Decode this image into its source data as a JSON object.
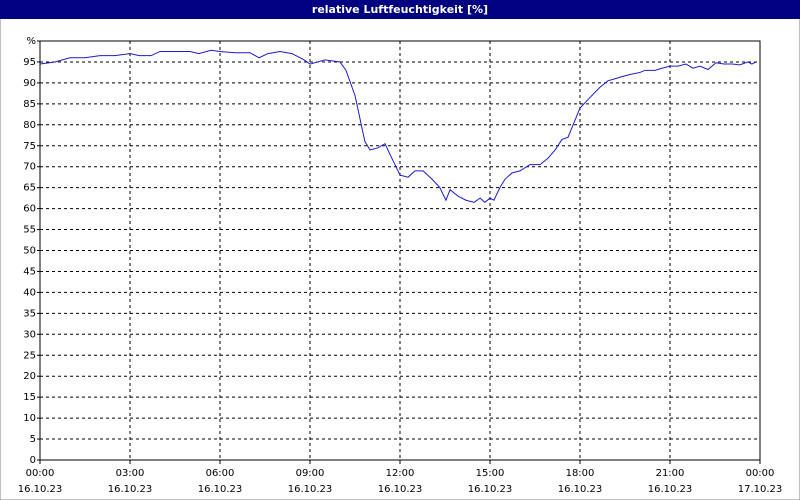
{
  "chart_data": {
    "type": "line",
    "title": "relative Luftfeuchtigkeit [%]",
    "xlim": [
      0,
      24
    ],
    "xticks": [
      {
        "value": 0,
        "label": "00:00"
      },
      {
        "value": 3,
        "label": "03:00"
      },
      {
        "value": 6,
        "label": "06:00"
      },
      {
        "value": 9,
        "label": "09:00"
      },
      {
        "value": 12,
        "label": "12:00"
      },
      {
        "value": 15,
        "label": "15:00"
      },
      {
        "value": 18,
        "label": "18:00"
      },
      {
        "value": 21,
        "label": "21:00"
      },
      {
        "value": 24,
        "label": "00:00"
      }
    ],
    "xtick_dates": [
      "16.10.23",
      "16.10.23",
      "16.10.23",
      "16.10.23",
      "16.10.23",
      "16.10.23",
      "16.10.23",
      "16.10.23",
      "17.10.23"
    ],
    "ylim": [
      0,
      100
    ],
    "yticks": [
      0,
      5,
      10,
      15,
      20,
      25,
      30,
      35,
      40,
      45,
      50,
      55,
      60,
      65,
      70,
      75,
      80,
      85,
      90,
      95,
      {
        "value": 100,
        "label": "%"
      }
    ],
    "grid": true,
    "series": [
      {
        "color": "#1c1ccc",
        "x": [
          0,
          0.5,
          1,
          1.5,
          2,
          2.5,
          3,
          3.3,
          3.7,
          4,
          4.5,
          5,
          5.3,
          5.7,
          6,
          6.5,
          7,
          7.3,
          7.6,
          8,
          8.4,
          8.8,
          9,
          9.5,
          10,
          10.2,
          10.5,
          10.83,
          11,
          11.27,
          11.5,
          11.73,
          12,
          12.27,
          12.5,
          12.77,
          13.07,
          13.33,
          13.53,
          13.67,
          13.93,
          14.2,
          14.47,
          14.67,
          14.83,
          15,
          15.13,
          15.33,
          15.5,
          15.73,
          16,
          16.33,
          16.67,
          16.93,
          17.17,
          17.4,
          17.6,
          17.77,
          18,
          18.33,
          18.67,
          18.93,
          19.17,
          19.4,
          19.67,
          20,
          20.17,
          20.5,
          20.73,
          21,
          21.27,
          21.53,
          21.77,
          22,
          22.27,
          22.53,
          22.8,
          23.07,
          23.33,
          23.6,
          23.73,
          23.87
        ],
        "values": [
          94.5,
          95,
          96,
          96,
          96.5,
          96.5,
          97,
          96.5,
          96.5,
          97.5,
          97.5,
          97.5,
          97,
          97.8,
          97.5,
          97.2,
          97.2,
          96,
          97,
          97.5,
          97,
          95.5,
          94.5,
          95.5,
          95,
          93,
          87,
          76,
          74,
          74.5,
          75.5,
          72,
          68,
          67.5,
          69,
          69,
          67,
          65,
          62,
          64.5,
          63,
          62,
          61.5,
          62.5,
          61.5,
          62.5,
          62,
          65,
          67,
          68.5,
          69,
          70.5,
          70.5,
          72,
          74,
          76.5,
          77,
          80,
          84,
          86.5,
          89,
          90.5,
          91,
          91.5,
          92,
          92.5,
          93,
          93,
          93.5,
          94,
          94,
          94.5,
          93.5,
          94,
          93.2,
          94.8,
          94.5,
          94.5,
          94.3,
          95,
          94.5,
          95
        ]
      }
    ]
  }
}
